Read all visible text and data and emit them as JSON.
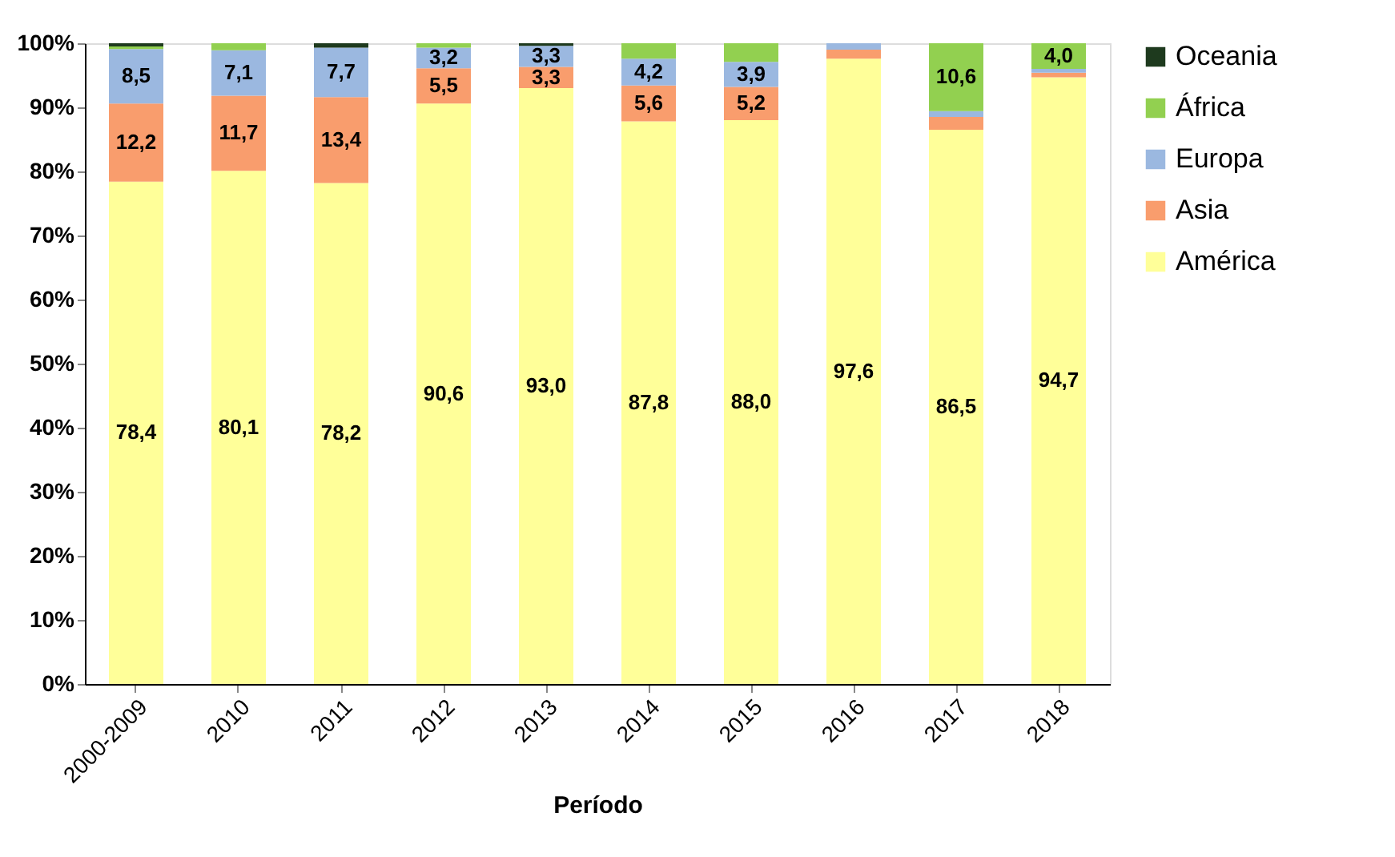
{
  "chart_data": {
    "type": "bar",
    "stacked": true,
    "xlabel": "Período",
    "categories": [
      "2000-2009",
      "2010",
      "2011",
      "2012",
      "2013",
      "2014",
      "2015",
      "2016",
      "2017",
      "2018"
    ],
    "series": [
      {
        "name": "América",
        "color": "#ffff99",
        "values": [
          78.4,
          80.1,
          78.2,
          90.6,
          93.0,
          87.8,
          88.0,
          97.6,
          86.5,
          94.7
        ],
        "value_labels": [
          "78,4",
          "80,1",
          "78,2",
          "90,6",
          "93,0",
          "87,8",
          "88,0",
          "97,6",
          "86,5",
          "94,7"
        ]
      },
      {
        "name": "Asia",
        "color": "#f99d6d",
        "values": [
          12.2,
          11.7,
          13.4,
          5.5,
          3.3,
          5.6,
          5.2,
          1.4,
          2.0,
          0.7
        ],
        "value_labels": [
          "12,2",
          "11,7",
          "13,4",
          "5,5",
          "3,3",
          "5,6",
          "5,2",
          null,
          null,
          null
        ]
      },
      {
        "name": "Europa",
        "color": "#9bb8e0",
        "values": [
          8.5,
          7.1,
          7.7,
          3.2,
          3.3,
          4.2,
          3.9,
          1.0,
          0.9,
          0.6
        ],
        "value_labels": [
          "8,5",
          "7,1",
          "7,7",
          "3,2",
          "3,3",
          "4,2",
          "3,9",
          null,
          null,
          null
        ]
      },
      {
        "name": "África",
        "color": "#92d050",
        "values": [
          0.4,
          1.1,
          0.0,
          0.7,
          0.0,
          2.4,
          2.9,
          0.0,
          10.6,
          4.0
        ],
        "value_labels": [
          null,
          null,
          null,
          null,
          null,
          null,
          null,
          null,
          "10,6",
          "4,0"
        ]
      },
      {
        "name": "Oceania",
        "color": "#1e3a1e",
        "values": [
          0.5,
          0.0,
          0.7,
          0.0,
          0.4,
          0.0,
          0.0,
          0.0,
          0.0,
          0.0
        ],
        "value_labels": [
          null,
          null,
          null,
          null,
          null,
          null,
          null,
          null,
          null,
          null
        ]
      }
    ],
    "ylim": [
      0,
      100
    ],
    "yticks": [
      {
        "value": 0,
        "label": "0%"
      },
      {
        "value": 10,
        "label": "10%"
      },
      {
        "value": 20,
        "label": "20%"
      },
      {
        "value": 30,
        "label": "30%"
      },
      {
        "value": 40,
        "label": "40%"
      },
      {
        "value": 50,
        "label": "50%"
      },
      {
        "value": 60,
        "label": "60%"
      },
      {
        "value": 70,
        "label": "70%"
      },
      {
        "value": 80,
        "label": "80%"
      },
      {
        "value": 90,
        "label": "90%"
      },
      {
        "value": 100,
        "label": "100%"
      }
    ],
    "grid": false,
    "legend": "right"
  }
}
